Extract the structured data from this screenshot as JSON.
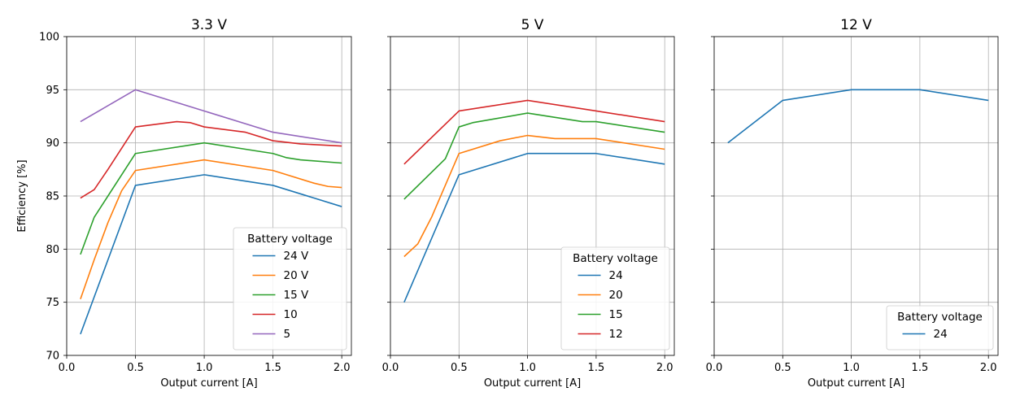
{
  "chart_data": [
    {
      "type": "line",
      "title": "3.3 V",
      "xlabel": "Output current [A]",
      "ylabel": "Efficiency [%]",
      "xlim": [
        0.0,
        2.07
      ],
      "ylim": [
        70,
        100
      ],
      "xticks": [
        "0.0",
        "0.5",
        "1.0",
        "1.5",
        "2.0"
      ],
      "yticks": [
        "70",
        "75",
        "80",
        "85",
        "90",
        "95",
        "100"
      ],
      "grid": true,
      "legend": {
        "title": "Battery voltage",
        "position": "lower-right"
      },
      "series": [
        {
          "name": "24 V",
          "color": "#1f77b4",
          "x": [
            0.1,
            0.5,
            1.0,
            1.5,
            2.0
          ],
          "y": [
            72,
            86,
            87,
            86,
            84
          ]
        },
        {
          "name": "20 V",
          "color": "#ff7f0e",
          "x": [
            0.1,
            0.2,
            0.3,
            0.4,
            0.5,
            1.0,
            1.5,
            1.8,
            1.9,
            2.0
          ],
          "y": [
            75.3,
            79,
            82.5,
            85.5,
            87.4,
            88.4,
            87.4,
            86.2,
            85.9,
            85.8
          ]
        },
        {
          "name": "15 V",
          "color": "#2ca02c",
          "x": [
            0.1,
            0.2,
            0.5,
            1.0,
            1.5,
            1.6,
            1.7,
            2.0
          ],
          "y": [
            79.5,
            83,
            89,
            90,
            89,
            88.6,
            88.4,
            88.1
          ]
        },
        {
          "name": "10",
          "color": "#d62728",
          "x": [
            0.1,
            0.2,
            0.3,
            0.5,
            0.8,
            0.9,
            1.0,
            1.3,
            1.5,
            1.7,
            2.0
          ],
          "y": [
            84.8,
            85.6,
            87.5,
            91.5,
            92,
            91.9,
            91.5,
            91,
            90.2,
            89.9,
            89.7
          ]
        },
        {
          "name": "5",
          "color": "#9467bd",
          "x": [
            0.1,
            0.5,
            1.0,
            1.5,
            2.0
          ],
          "y": [
            92,
            95,
            93,
            91,
            90
          ]
        }
      ]
    },
    {
      "type": "line",
      "title": "5 V",
      "xlabel": "Output current [A]",
      "ylabel": "",
      "xlim": [
        0.0,
        2.07
      ],
      "ylim": [
        70,
        100
      ],
      "xticks": [
        "0.0",
        "0.5",
        "1.0",
        "1.5",
        "2.0"
      ],
      "yticks": [],
      "grid": true,
      "legend": {
        "title": "Battery voltage",
        "position": "lower-right"
      },
      "series": [
        {
          "name": "24",
          "color": "#1f77b4",
          "x": [
            0.1,
            0.5,
            1.0,
            1.5,
            2.0
          ],
          "y": [
            75,
            87,
            89,
            89,
            88
          ]
        },
        {
          "name": "20",
          "color": "#ff7f0e",
          "x": [
            0.1,
            0.2,
            0.3,
            0.5,
            0.8,
            1.0,
            1.2,
            1.5,
            2.0
          ],
          "y": [
            79.3,
            80.5,
            83,
            89,
            90.2,
            90.7,
            90.4,
            90.4,
            89.4
          ]
        },
        {
          "name": "15",
          "color": "#2ca02c",
          "x": [
            0.1,
            0.4,
            0.5,
            0.6,
            1.0,
            1.4,
            1.5,
            2.0
          ],
          "y": [
            84.7,
            88.5,
            91.5,
            91.9,
            92.8,
            92,
            92,
            91
          ]
        },
        {
          "name": "12",
          "color": "#d62728",
          "x": [
            0.1,
            0.5,
            1.0,
            1.5,
            2.0
          ],
          "y": [
            88,
            93,
            94,
            93,
            92
          ]
        }
      ]
    },
    {
      "type": "line",
      "title": "12 V",
      "xlabel": "Output current [A]",
      "ylabel": "",
      "xlim": [
        0.0,
        2.07
      ],
      "ylim": [
        70,
        100
      ],
      "xticks": [
        "0.0",
        "0.5",
        "1.0",
        "1.5",
        "2.0"
      ],
      "yticks": [],
      "grid": true,
      "legend": {
        "title": "Battery voltage",
        "position": "lower-right"
      },
      "series": [
        {
          "name": "24",
          "color": "#1f77b4",
          "x": [
            0.1,
            0.5,
            1.0,
            1.5,
            2.0
          ],
          "y": [
            90,
            94,
            95,
            95,
            94
          ]
        }
      ]
    }
  ]
}
